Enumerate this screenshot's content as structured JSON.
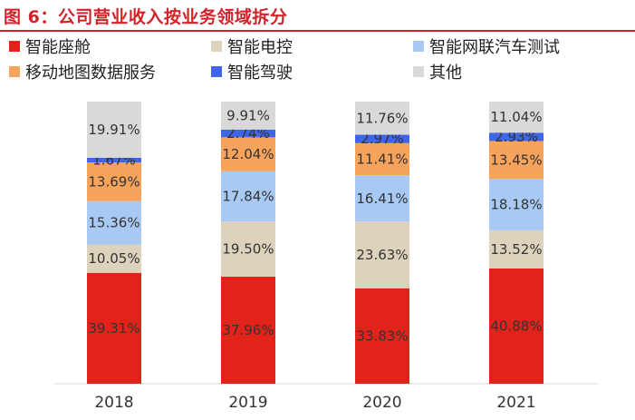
{
  "figure_title": "图 6：公司营业收入按业务领域拆分",
  "chart_data": {
    "type": "bar",
    "stacked": true,
    "title": "图 6：公司营业收入按业务领域拆分",
    "categories": [
      "2018",
      "2019",
      "2020",
      "2021"
    ],
    "series": [
      {
        "name": "智能座舱",
        "color": "#e2231a",
        "values": [
          39.31,
          37.96,
          33.83,
          40.88
        ]
      },
      {
        "name": "智能电控",
        "color": "#ddd3bd",
        "values": [
          10.05,
          19.5,
          23.63,
          13.52
        ]
      },
      {
        "name": "智能网联汽车测试",
        "color": "#a9c9f5",
        "values": [
          15.36,
          17.84,
          16.41,
          18.18
        ]
      },
      {
        "name": "移动地图数据服务",
        "color": "#f7a35c",
        "values": [
          13.69,
          12.04,
          11.41,
          13.45
        ]
      },
      {
        "name": "智能驾驶",
        "color": "#3f66e8",
        "values": [
          1.67,
          2.74,
          2.97,
          2.93
        ]
      },
      {
        "name": "其他",
        "color": "#d9d9d9",
        "values": [
          19.91,
          9.91,
          11.76,
          11.04
        ]
      }
    ],
    "ylim": [
      0,
      100
    ],
    "value_format": "percent_2dp",
    "xlabel": "",
    "ylabel": "",
    "legend_position": "top"
  }
}
